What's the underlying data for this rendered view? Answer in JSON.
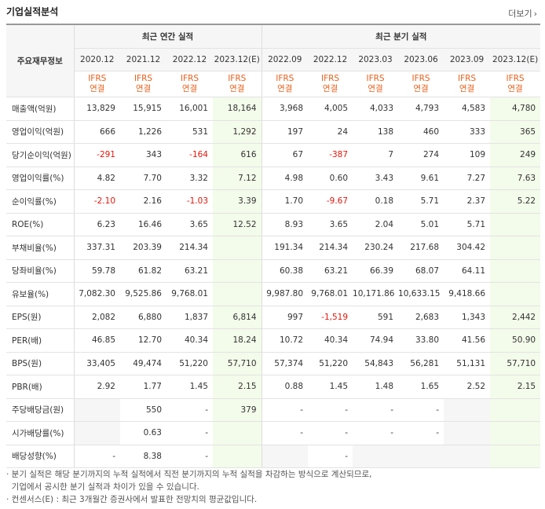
{
  "title": "기업실적분석",
  "more_label": "더보기",
  "header": {
    "row_label": "주요재무정보",
    "annual_label": "최근 연간 실적",
    "quarter_label": "최근 분기 실적",
    "periods": [
      "2020.12",
      "2021.12",
      "2022.12",
      "2023.12(E)",
      "2022.09",
      "2022.12",
      "2023.03",
      "2023.06",
      "2023.09",
      "2023.12(E)"
    ],
    "ifrs_top": "IFRS",
    "ifrs_bottom": "연결"
  },
  "rows": [
    {
      "label": "매출액(억원)",
      "values": [
        "13,829",
        "15,915",
        "16,001",
        "18,164",
        "3,968",
        "4,005",
        "4,033",
        "4,793",
        "4,583",
        "4,780"
      ]
    },
    {
      "label": "영업이익(억원)",
      "values": [
        "666",
        "1,226",
        "531",
        "1,292",
        "197",
        "24",
        "138",
        "460",
        "333",
        "365"
      ]
    },
    {
      "label": "당기순이익(억원)",
      "values": [
        "-291",
        "343",
        "-164",
        "616",
        "67",
        "-387",
        "7",
        "274",
        "109",
        "249"
      ]
    },
    {
      "label": "영업이익률(%)",
      "values": [
        "4.82",
        "7.70",
        "3.32",
        "7.12",
        "4.98",
        "0.60",
        "3.43",
        "9.61",
        "7.27",
        "7.63"
      ]
    },
    {
      "label": "순이익률(%)",
      "values": [
        "-2.10",
        "2.16",
        "-1.03",
        "3.39",
        "1.70",
        "-9.67",
        "0.18",
        "5.71",
        "2.37",
        "5.22"
      ]
    },
    {
      "label": "ROE(%)",
      "values": [
        "6.23",
        "16.46",
        "3.65",
        "12.52",
        "8.93",
        "3.65",
        "2.04",
        "5.01",
        "5.71",
        ""
      ]
    },
    {
      "label": "부채비율(%)",
      "values": [
        "337.31",
        "203.39",
        "214.34",
        "",
        "191.34",
        "214.34",
        "230.24",
        "217.68",
        "304.42",
        ""
      ]
    },
    {
      "label": "당좌비율(%)",
      "values": [
        "59.78",
        "61.82",
        "63.21",
        "",
        "60.38",
        "63.21",
        "66.39",
        "68.07",
        "64.11",
        ""
      ]
    },
    {
      "label": "유보율(%)",
      "values": [
        "7,082.30",
        "9,525.86",
        "9,768.01",
        "",
        "9,987.80",
        "9,768.01",
        "10,171.86",
        "10,633.15",
        "9,418.66",
        ""
      ]
    },
    {
      "label": "EPS(원)",
      "values": [
        "2,082",
        "6,880",
        "1,837",
        "6,814",
        "997",
        "-1,519",
        "591",
        "2,683",
        "1,343",
        "2,442"
      ]
    },
    {
      "label": "PER(배)",
      "values": [
        "46.85",
        "12.70",
        "40.34",
        "18.24",
        "10.72",
        "40.34",
        "74.94",
        "33.80",
        "41.56",
        "50.90"
      ]
    },
    {
      "label": "BPS(원)",
      "values": [
        "33,405",
        "49,474",
        "51,220",
        "57,710",
        "57,374",
        "51,220",
        "54,843",
        "56,281",
        "51,131",
        "57,710"
      ]
    },
    {
      "label": "PBR(배)",
      "values": [
        "2.92",
        "1.77",
        "1.45",
        "2.15",
        "0.88",
        "1.45",
        "1.48",
        "1.65",
        "2.52",
        "2.15"
      ]
    },
    {
      "label": "주당배당금(원)",
      "values": [
        "",
        "550",
        "-",
        "379",
        "-",
        "-",
        "-",
        "-",
        "",
        ""
      ]
    },
    {
      "label": "시가배당률(%)",
      "values": [
        "",
        "0.63",
        "-",
        "",
        "-",
        "-",
        "-",
        "-",
        "",
        ""
      ]
    },
    {
      "label": "배당성향(%)",
      "values": [
        "-",
        "8.38",
        "-",
        "",
        "",
        "-",
        "",
        "",
        "",
        ""
      ]
    }
  ],
  "notes": [
    "· 분기 실적은 해당 분기까지의 누적 실적에서 직전 분기까지의 누적 실적을 차감하는 방식으로 계산되므로,",
    "  기업에서 공시한 분기 실적과 차이가 있을 수 있습니다.",
    "· 컨센서스(E) : 최근 3개월간 증권사에서 발표한 전망치의 평균값입니다."
  ],
  "colors": {
    "ifrs": "#e8601c",
    "negative": "#e3160b",
    "estimate_bg": "#f3fbea"
  }
}
